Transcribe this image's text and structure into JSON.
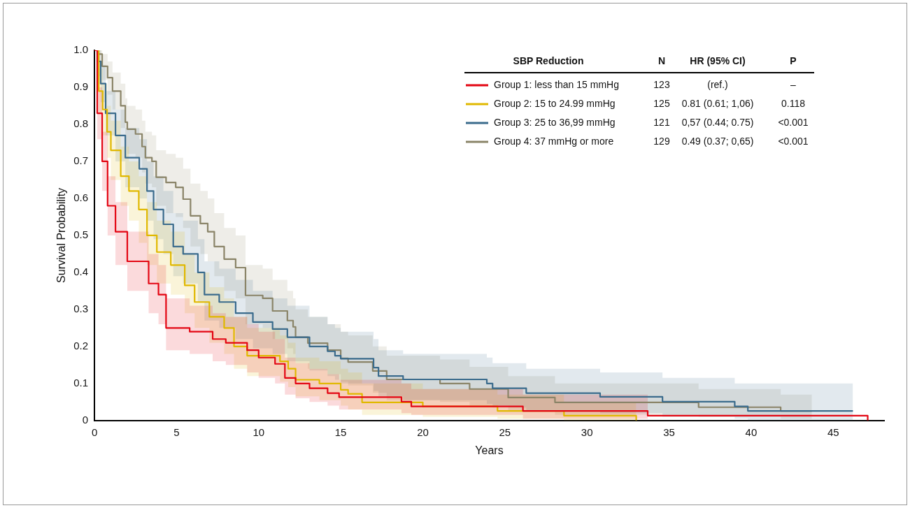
{
  "chart_data": {
    "type": "step",
    "xlabel": "Years",
    "ylabel": "Survival Probability",
    "legend_title": "SBP Reduction",
    "legend": "top right",
    "xlim": [
      0,
      48.1
    ],
    "ylim": [
      0,
      1
    ],
    "xticks": [
      0,
      5,
      10,
      15,
      20,
      25,
      30,
      35,
      40,
      45
    ],
    "yticks": [
      0,
      0.1,
      0.2,
      0.3,
      0.4,
      0.5,
      0.6,
      0.7,
      0.8,
      0.9,
      {
        "value": 1,
        "label": "1.0"
      }
    ],
    "annotations": [
      "N",
      "HR (95% CI)",
      "P",
      "123",
      "(ref.)",
      "–",
      "125",
      "0.81 (0.61; 1,06)",
      "0.118",
      "121",
      "0,57 (0.44; 0.75)",
      "<0.001",
      "129",
      "0.49 (0.37; 0,65)",
      "<0.001"
    ],
    "series": [
      {
        "name": "Group 1: less than 15 mmHg",
        "color": "#e30613",
        "x": [
          0,
          0.17,
          0.47,
          0.8,
          1.28,
          2.0,
          3.3,
          3.9,
          4.36,
          5.8,
          7.2,
          8.0,
          9.3,
          10.0,
          11.0,
          11.6,
          12.25,
          13.1,
          14.2,
          14.9,
          18.7,
          19.3,
          26.1,
          33.7,
          47.1
        ],
        "values": [
          1,
          0.83,
          0.7,
          0.58,
          0.51,
          0.43,
          0.37,
          0.34,
          0.25,
          0.24,
          0.22,
          0.21,
          0.19,
          0.17,
          0.153,
          0.115,
          0.1,
          0.087,
          0.074,
          0.063,
          0.051,
          0.038,
          0.026,
          0.013,
          0
        ],
        "lower": [
          1,
          0.76,
          0.62,
          0.5,
          0.42,
          0.35,
          0.29,
          0.26,
          0.19,
          0.18,
          0.16,
          0.15,
          0.13,
          0.115,
          0.1,
          0.07,
          0.06,
          0.05,
          0.04,
          0.03,
          0.02,
          0.015,
          0.005,
          0.013,
          0
        ],
        "upper": [
          1,
          0.9,
          0.78,
          0.66,
          0.59,
          0.51,
          0.45,
          0.42,
          0.33,
          0.31,
          0.29,
          0.28,
          0.26,
          0.24,
          0.22,
          0.17,
          0.155,
          0.14,
          0.125,
          0.11,
          0.1,
          0.085,
          0.07,
          0.013,
          0
        ]
      },
      {
        "name": "Group 2: 15 to 24.99 mmHg",
        "color": "#e0b800",
        "x": [
          0,
          0.26,
          0.5,
          0.77,
          1.0,
          1.6,
          2.1,
          2.7,
          3.2,
          3.8,
          4.65,
          5.5,
          6.1,
          7.0,
          7.9,
          8.5,
          9.3,
          11.3,
          11.8,
          12.25,
          13.7,
          15.0,
          15.45,
          16.3,
          20.0,
          24.55,
          28.6,
          33.0
        ],
        "values": [
          1,
          0.89,
          0.84,
          0.78,
          0.73,
          0.66,
          0.62,
          0.57,
          0.5,
          0.455,
          0.42,
          0.365,
          0.32,
          0.28,
          0.25,
          0.2,
          0.175,
          0.16,
          0.14,
          0.11,
          0.1,
          0.083,
          0.072,
          0.049,
          0.038,
          0.026,
          0.013,
          0
        ],
        "lower": [
          1,
          0.83,
          0.77,
          0.71,
          0.65,
          0.58,
          0.54,
          0.48,
          0.42,
          0.37,
          0.34,
          0.29,
          0.25,
          0.21,
          0.18,
          0.14,
          0.12,
          0.105,
          0.09,
          0.065,
          0.055,
          0.04,
          0.03,
          0.015,
          0.01,
          0.005,
          0,
          0
        ],
        "upper": [
          1,
          0.95,
          0.91,
          0.85,
          0.81,
          0.74,
          0.7,
          0.66,
          0.59,
          0.54,
          0.51,
          0.45,
          0.4,
          0.36,
          0.33,
          0.28,
          0.25,
          0.23,
          0.21,
          0.17,
          0.16,
          0.14,
          0.13,
          0.1,
          0.085,
          0.07,
          0.05,
          0
        ]
      },
      {
        "name": "Group 3: 25 to 36,99 mmHg",
        "color": "#3a6b8c",
        "x": [
          0,
          0.17,
          0.38,
          0.68,
          1.28,
          1.88,
          2.73,
          3.2,
          3.6,
          4.2,
          4.8,
          5.4,
          6.3,
          6.7,
          7.6,
          8.6,
          9.65,
          10.85,
          11.75,
          13.1,
          14.2,
          14.65,
          15.0,
          17.0,
          17.3,
          18.8,
          23.9,
          24.25,
          26.3,
          30.8,
          34.6,
          39.0,
          39.8,
          46.2
        ],
        "values": [
          1,
          0.97,
          0.91,
          0.83,
          0.77,
          0.71,
          0.68,
          0.62,
          0.57,
          0.53,
          0.47,
          0.45,
          0.4,
          0.34,
          0.32,
          0.29,
          0.266,
          0.247,
          0.225,
          0.2,
          0.187,
          0.175,
          0.167,
          0.143,
          0.12,
          0.111,
          0.1,
          0.087,
          0.074,
          0.064,
          0.051,
          0.038,
          0.026,
          0.026
        ],
        "lower": [
          1,
          0.93,
          0.86,
          0.77,
          0.7,
          0.63,
          0.6,
          0.54,
          0.49,
          0.45,
          0.39,
          0.37,
          0.32,
          0.27,
          0.25,
          0.22,
          0.195,
          0.18,
          0.16,
          0.135,
          0.12,
          0.11,
          0.1,
          0.08,
          0.065,
          0.055,
          0.045,
          0.035,
          0.025,
          0.02,
          0.01,
          0.005,
          0,
          0
        ],
        "upper": [
          1,
          1,
          0.96,
          0.89,
          0.84,
          0.79,
          0.76,
          0.7,
          0.66,
          0.62,
          0.56,
          0.54,
          0.49,
          0.43,
          0.41,
          0.38,
          0.35,
          0.33,
          0.31,
          0.28,
          0.26,
          0.25,
          0.24,
          0.22,
          0.19,
          0.18,
          0.17,
          0.155,
          0.14,
          0.13,
          0.115,
          0.1,
          0.1,
          0.1
        ]
      },
      {
        "name": "Group 4: 37 mmHg or more",
        "color": "#8a8468",
        "x": [
          0,
          0.17,
          0.47,
          0.8,
          1.1,
          1.6,
          1.88,
          2.0,
          2.5,
          2.9,
          3.1,
          3.5,
          3.76,
          4.36,
          4.95,
          5.4,
          5.85,
          6.45,
          6.9,
          7.3,
          7.9,
          8.6,
          9.2,
          10.25,
          10.85,
          11.75,
          12.1,
          12.25,
          13.0,
          14.2,
          15.0,
          15.45,
          16.95,
          17.8,
          21.05,
          22.85,
          25.2,
          28.05,
          36.8,
          41.8,
          43.7
        ],
        "values": [
          1,
          0.99,
          0.957,
          0.926,
          0.89,
          0.85,
          0.806,
          0.787,
          0.774,
          0.74,
          0.71,
          0.7,
          0.657,
          0.643,
          0.63,
          0.598,
          0.553,
          0.532,
          0.51,
          0.47,
          0.436,
          0.413,
          0.338,
          0.33,
          0.296,
          0.27,
          0.253,
          0.225,
          0.209,
          0.19,
          0.168,
          0.158,
          0.134,
          0.111,
          0.1,
          0.085,
          0.062,
          0.049,
          0.036,
          0.026,
          0.026
        ],
        "lower": [
          1,
          0.97,
          0.92,
          0.88,
          0.84,
          0.79,
          0.74,
          0.72,
          0.71,
          0.67,
          0.64,
          0.63,
          0.58,
          0.56,
          0.55,
          0.52,
          0.47,
          0.45,
          0.43,
          0.39,
          0.35,
          0.33,
          0.26,
          0.25,
          0.22,
          0.195,
          0.18,
          0.155,
          0.14,
          0.125,
          0.105,
          0.095,
          0.075,
          0.055,
          0.05,
          0.04,
          0.025,
          0.015,
          0.01,
          0.005,
          0.005
        ],
        "upper": [
          1,
          1,
          0.99,
          0.97,
          0.94,
          0.91,
          0.87,
          0.85,
          0.84,
          0.81,
          0.78,
          0.77,
          0.73,
          0.72,
          0.71,
          0.68,
          0.64,
          0.62,
          0.6,
          0.56,
          0.52,
          0.5,
          0.42,
          0.41,
          0.38,
          0.35,
          0.33,
          0.3,
          0.28,
          0.26,
          0.24,
          0.23,
          0.2,
          0.175,
          0.165,
          0.145,
          0.12,
          0.1,
          0.085,
          0.07,
          0.07
        ]
      }
    ]
  }
}
